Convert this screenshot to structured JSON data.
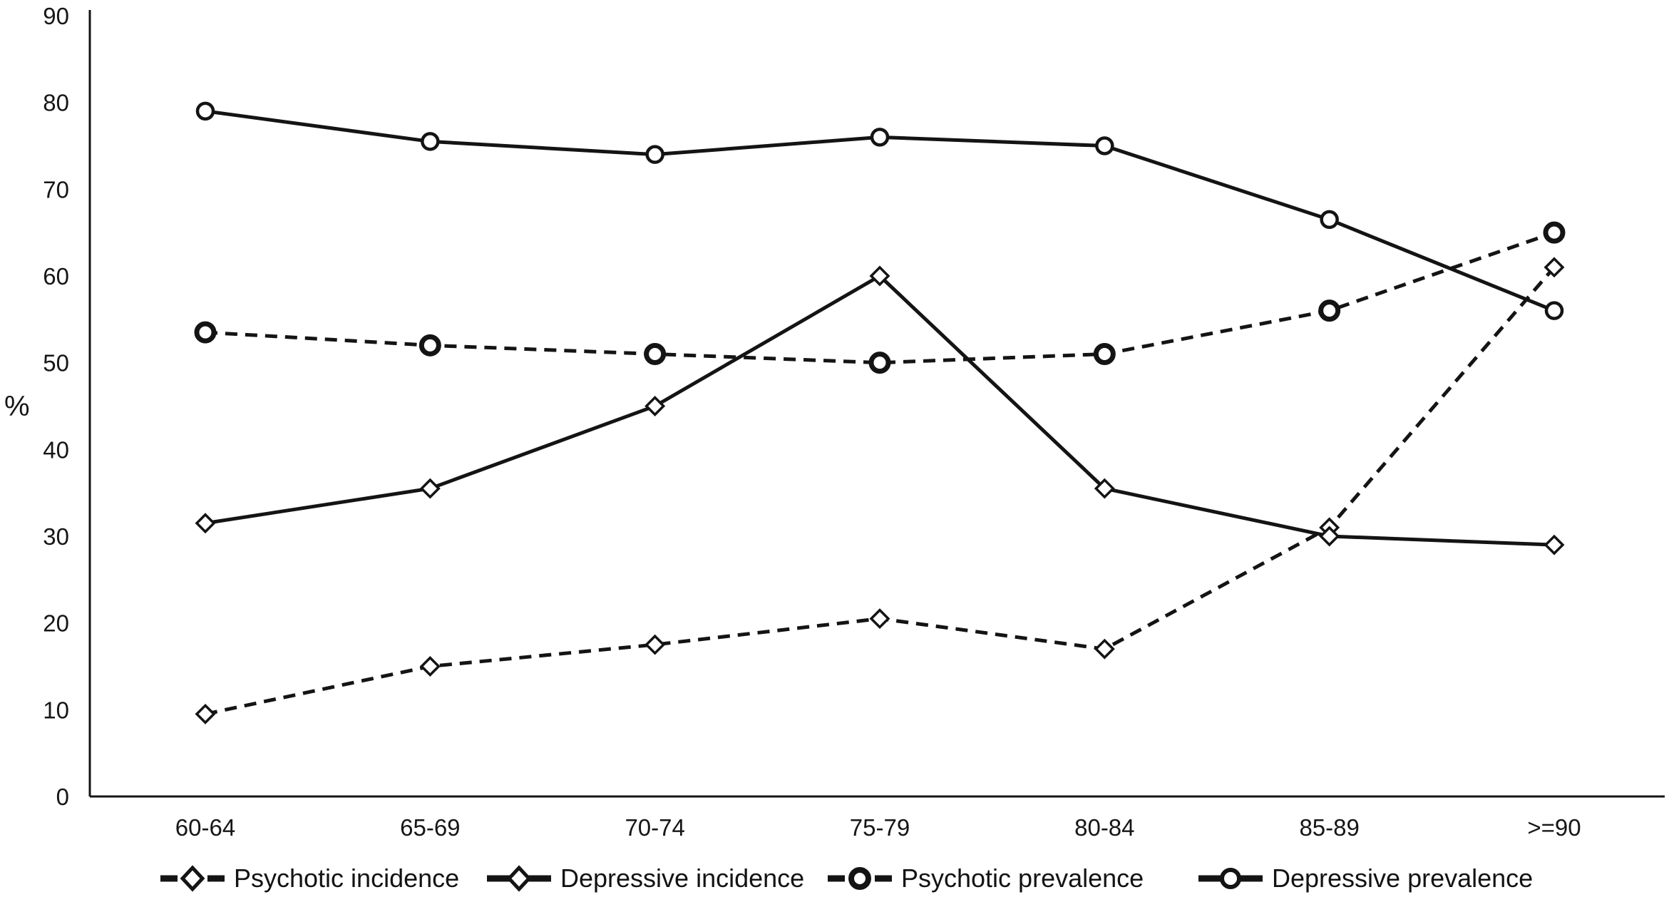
{
  "chart_data": {
    "type": "line",
    "title": "",
    "xlabel": "",
    "ylabel": "%",
    "ylim": [
      0,
      90
    ],
    "yticks": [
      0,
      10,
      20,
      30,
      40,
      50,
      60,
      70,
      80,
      90
    ],
    "grid": false,
    "legend_position": "bottom",
    "line_color": "#141414",
    "categories": [
      "60-64",
      "65-69",
      "70-74",
      "75-79",
      "80-84",
      "85-89",
      ">=90"
    ],
    "series": [
      {
        "name": "Psychotic incidence",
        "line": "dashed",
        "marker": "diamond",
        "values": [
          9.5,
          15,
          17.5,
          20.5,
          17,
          31,
          61
        ]
      },
      {
        "name": "Depressive incidence",
        "line": "solid",
        "marker": "diamond",
        "values": [
          31.5,
          35.5,
          45,
          60,
          35.5,
          30,
          29
        ]
      },
      {
        "name": "Psychotic prevalence",
        "line": "dashed",
        "marker": "circle-bold",
        "values": [
          53.5,
          52,
          51,
          50,
          51,
          56,
          65
        ]
      },
      {
        "name": "Depressive prevalence",
        "line": "solid",
        "marker": "circle",
        "values": [
          79,
          75.5,
          74,
          76,
          75,
          66.5,
          56
        ]
      }
    ]
  }
}
